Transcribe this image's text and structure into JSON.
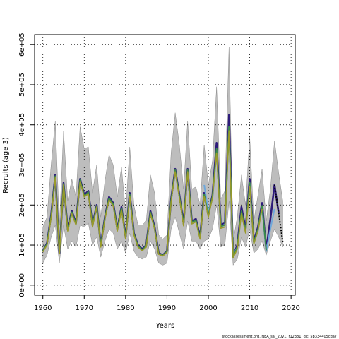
{
  "chart_data": {
    "type": "line",
    "title": "",
    "xlabel": "Years",
    "ylabel": "Recruits (age 3)",
    "xlim": [
      1958,
      2021
    ],
    "ylim": [
      -25000,
      625000
    ],
    "x_ticks": [
      1960,
      1970,
      1980,
      1990,
      2000,
      2010,
      2020
    ],
    "x_tick_labels": [
      "1960",
      "1970",
      "1980",
      "1990",
      "2000",
      "2010",
      "2020"
    ],
    "y_ticks": [
      0,
      100000,
      200000,
      300000,
      400000,
      500000,
      600000
    ],
    "y_tick_labels": [
      "0e+00",
      "1e+05",
      "2e+05",
      "3e+05",
      "4e+05",
      "5e+05",
      "6e+05"
    ],
    "grid": true,
    "legend": "none",
    "x": [
      1960,
      1961,
      1962,
      1963,
      1964,
      1965,
      1966,
      1967,
      1968,
      1969,
      1970,
      1971,
      1972,
      1973,
      1974,
      1975,
      1976,
      1977,
      1978,
      1979,
      1980,
      1981,
      1982,
      1983,
      1984,
      1985,
      1986,
      1987,
      1988,
      1989,
      1990,
      1991,
      1992,
      1993,
      1994,
      1995,
      1996,
      1997,
      1998,
      1999,
      2000,
      2001,
      2002,
      2003,
      2004,
      2005,
      2006,
      2007,
      2008,
      2009,
      2010,
      2011,
      2012,
      2013,
      2014,
      2015,
      2016,
      2017,
      2018
    ],
    "confidence_band": {
      "color": "#bdbdbd",
      "lower": [
        55000,
        75000,
        120000,
        150000,
        55000,
        150000,
        90000,
        110000,
        95000,
        150000,
        145000,
        155000,
        100000,
        120000,
        70000,
        110000,
        140000,
        130000,
        90000,
        110000,
        80000,
        130000,
        85000,
        70000,
        65000,
        70000,
        110000,
        90000,
        55000,
        50000,
        55000,
        140000,
        170000,
        130000,
        90000,
        160000,
        110000,
        110000,
        90000,
        110000,
        115000,
        140000,
        200000,
        95000,
        100000,
        210000,
        50000,
        65000,
        120000,
        95000,
        140000,
        80000,
        90000,
        110000,
        75000,
        110000,
        140000,
        120000,
        95000
      ],
      "upper": [
        145000,
        170000,
        300000,
        410000,
        150000,
        385000,
        210000,
        265000,
        220000,
        395000,
        340000,
        345000,
        230000,
        300000,
        170000,
        260000,
        325000,
        300000,
        220000,
        295000,
        180000,
        345000,
        200000,
        150000,
        150000,
        160000,
        275000,
        230000,
        125000,
        115000,
        125000,
        330000,
        430000,
        350000,
        240000,
        410000,
        240000,
        245000,
        200000,
        350000,
        250000,
        310000,
        495000,
        215000,
        235000,
        595000,
        110000,
        170000,
        275000,
        200000,
        370000,
        160000,
        225000,
        290000,
        160000,
        240000,
        360000,
        280000,
        210000
      ]
    },
    "series": [
      {
        "color": "#2d1b7a",
        "values": [
          85000,
          105000,
          175000,
          275000,
          80000,
          255000,
          140000,
          185000,
          155000,
          265000,
          225000,
          235000,
          150000,
          200000,
          100000,
          170000,
          220000,
          205000,
          140000,
          195000,
          120000,
          230000,
          130000,
          100000,
          90000,
          100000,
          185000,
          145000,
          80000,
          75000,
          85000,
          215000,
          290000,
          225000,
          155000,
          290000,
          160000,
          165000,
          120000,
          230000,
          175000,
          225000,
          355000,
          150000,
          155000,
          425000,
          72000,
          100000,
          195000,
          140000,
          265000,
          110000,
          145000,
          205000,
          90000,
          165000,
          250000,
          180000,
          null
        ]
      },
      {
        "color": "#6fa8dc",
        "values": [
          null,
          null,
          null,
          null,
          null,
          null,
          null,
          null,
          null,
          null,
          null,
          null,
          null,
          null,
          null,
          null,
          null,
          null,
          null,
          null,
          null,
          null,
          null,
          null,
          null,
          null,
          null,
          null,
          null,
          null,
          null,
          null,
          null,
          null,
          null,
          null,
          null,
          null,
          null,
          250000,
          185000,
          215000,
          335000,
          145000,
          152000,
          395000,
          75000,
          95000,
          180000,
          135000,
          255000,
          105000,
          135000,
          195000,
          85000,
          140000,
          190000,
          null,
          null
        ]
      },
      {
        "color": "#3a8a4a",
        "values": [
          85000,
          103000,
          172000,
          272000,
          80000,
          253000,
          138000,
          182000,
          152000,
          262000,
          222000,
          232000,
          148000,
          198000,
          98000,
          168000,
          217000,
          202000,
          138000,
          192000,
          118000,
          227000,
          128000,
          98000,
          88000,
          98000,
          182000,
          142000,
          78000,
          74000,
          84000,
          212000,
          287000,
          222000,
          152000,
          287000,
          157000,
          162000,
          118000,
          227000,
          173000,
          222000,
          340000,
          147000,
          150000,
          395000,
          70000,
          95000,
          185000,
          135000,
          255000,
          107000,
          140000,
          198000,
          87000,
          null,
          null,
          null,
          null
        ]
      },
      {
        "color": "#9a9a2a",
        "values": [
          83000,
          100000,
          168000,
          268000,
          78000,
          250000,
          135000,
          178000,
          150000,
          258000,
          220000,
          228000,
          145000,
          195000,
          95000,
          165000,
          213000,
          198000,
          135000,
          188000,
          115000,
          222000,
          125000,
          95000,
          86000,
          95000,
          178000,
          140000,
          77000,
          73000,
          82000,
          208000,
          283000,
          218000,
          148000,
          283000,
          153000,
          158000,
          115000,
          222000,
          170000,
          218000,
          330000,
          142000,
          145000,
          385000,
          68000,
          90000,
          178000,
          130000,
          245000,
          103000,
          135000,
          190000,
          null,
          null,
          null,
          null,
          null
        ]
      }
    ],
    "projection": {
      "color": "#000000",
      "style": "dotted",
      "x": [
        2016,
        2017,
        2018
      ],
      "values": [
        250000,
        180000,
        108000
      ]
    }
  },
  "footer": {
    "source_text": "stockassessment.org, NEA_sai_20v1, r12381, git: 5b334405cda7"
  }
}
